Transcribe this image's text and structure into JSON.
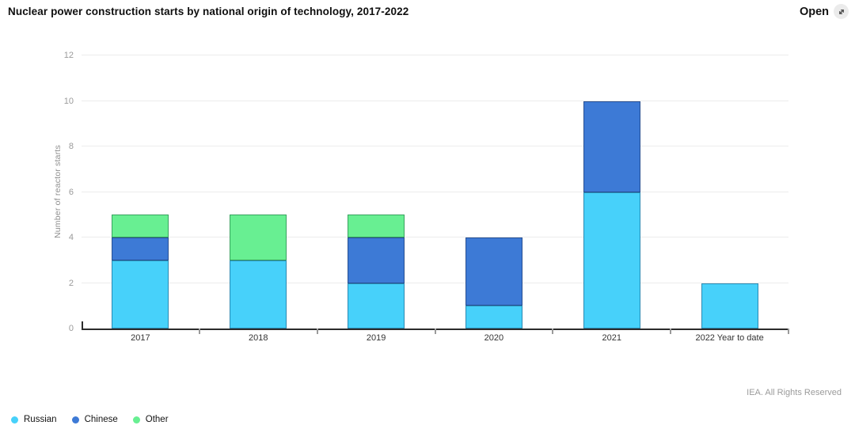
{
  "header": {
    "title": "Nuclear power construction starts by national origin of technology, 2017-2022",
    "open_label": "Open"
  },
  "footer": {
    "attribution": "IEA. All Rights Reserved"
  },
  "chart_data": {
    "type": "bar",
    "stacked": true,
    "title": "Nuclear power construction starts by national origin of technology, 2017-2022",
    "categories": [
      "2017",
      "2018",
      "2019",
      "2020",
      "2021",
      "2022 Year to date"
    ],
    "series": [
      {
        "name": "Russian",
        "color": "#47D1FA",
        "border": "#2a8ab3",
        "values": [
          3,
          3,
          2,
          1,
          6,
          2
        ]
      },
      {
        "name": "Chinese",
        "color": "#3D7AD6",
        "border": "#274f92",
        "values": [
          1,
          0,
          2,
          3,
          4,
          0
        ]
      },
      {
        "name": "Other",
        "color": "#68EF92",
        "border": "#37a35e",
        "values": [
          1,
          2,
          1,
          0,
          0,
          0
        ]
      }
    ],
    "totals": [
      5,
      5,
      5,
      4,
      10,
      2
    ],
    "xlabel": "",
    "ylabel": "Number of reactor starts",
    "ylim": [
      0,
      12
    ],
    "ytick_step": 2,
    "grid": true,
    "legend_position": "bottom-left"
  }
}
